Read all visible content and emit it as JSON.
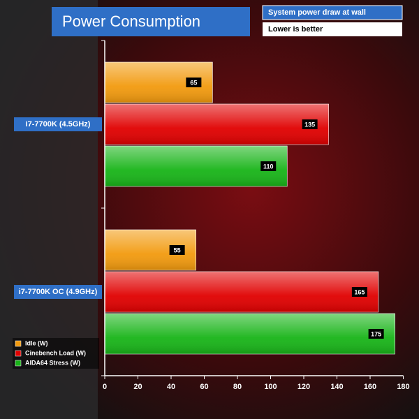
{
  "chart_data": {
    "type": "bar",
    "orientation": "horizontal",
    "title": "Power Consumption",
    "subtitle": "System power draw at wall",
    "note": "Lower is better",
    "categories": [
      "i7-7700K (4.5GHz)",
      "i7-7700K OC (4.9GHz)"
    ],
    "series": [
      {
        "name": "Idle (W)",
        "color": "#f29a0e",
        "values": [
          65,
          55
        ]
      },
      {
        "name": "Cinebench Load (W)",
        "color": "#e00000",
        "values": [
          135,
          165
        ]
      },
      {
        "name": "AIDA64 Stress (W)",
        "color": "#18b418",
        "values": [
          110,
          175
        ]
      }
    ],
    "xlim": [
      0,
      180
    ],
    "xticks": [
      0,
      20,
      40,
      60,
      80,
      100,
      120,
      140,
      160,
      180
    ],
    "legend": "bottom-left"
  }
}
